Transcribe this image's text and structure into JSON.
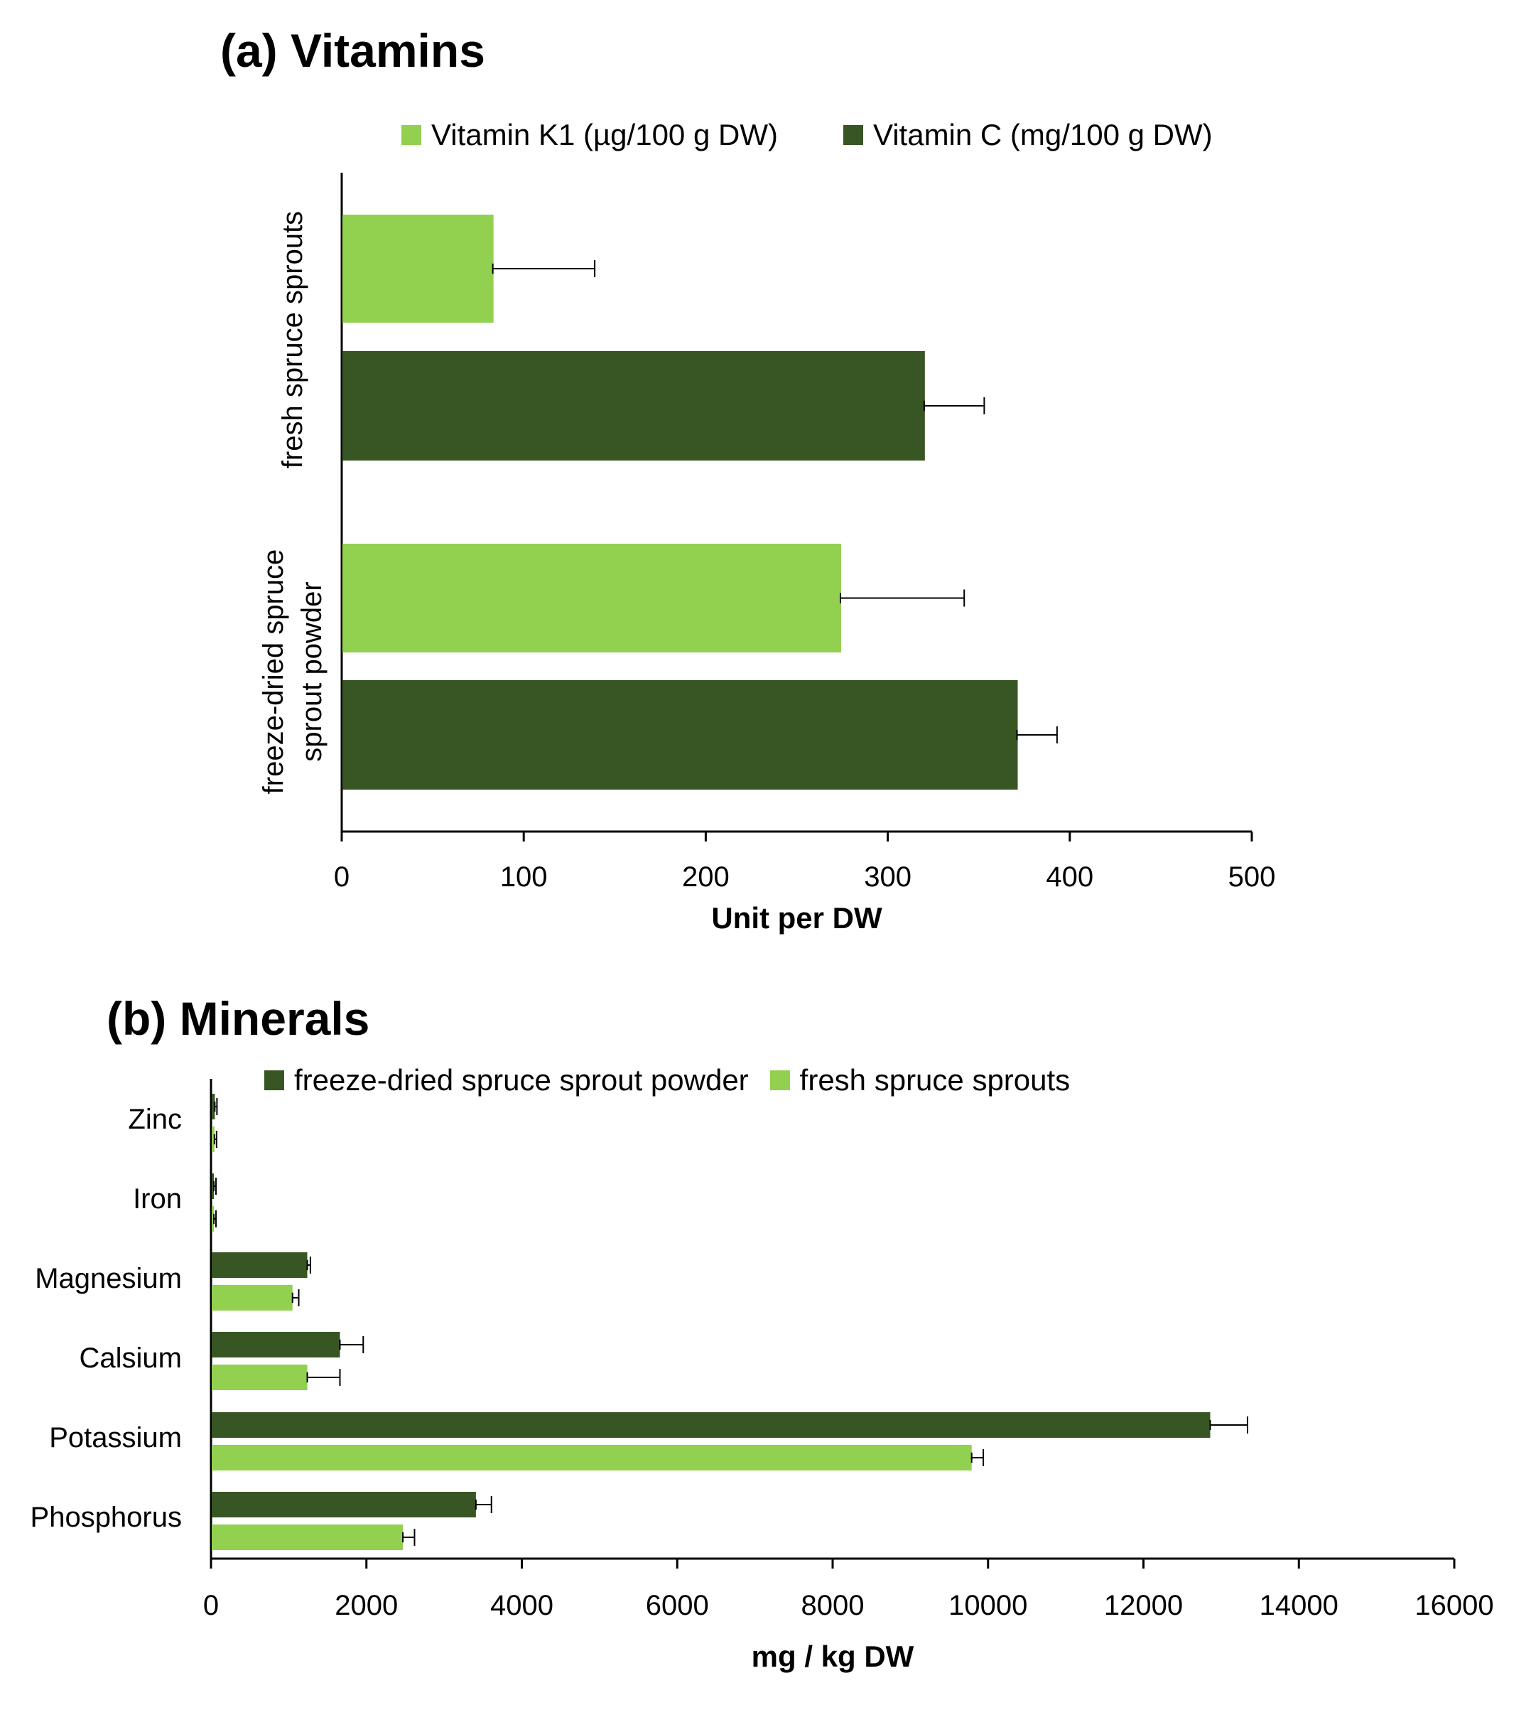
{
  "colors": {
    "light_green": "#92d050",
    "dark_green": "#375623",
    "axis": "#000000"
  },
  "chart_data": [
    {
      "id": "vitamins",
      "type": "bar",
      "orientation": "horizontal",
      "title": "(a) Vitamins",
      "xlabel": "Unit per DW",
      "ylabel": "",
      "xlim": [
        0,
        500
      ],
      "xticks": [
        "0",
        "100",
        "200",
        "300",
        "400",
        "500"
      ],
      "categories": [
        {
          "name": "fresh spruce sprouts",
          "lines": [
            "fresh spruce sprouts"
          ]
        },
        {
          "name": "freeze-dried spruce sprout powder",
          "lines": [
            "freeze-dried spruce",
            "sprout powder"
          ]
        }
      ],
      "legend_position": "top",
      "series": [
        {
          "name": "Vitamin K1 (µg/100 g DW)",
          "color": "#92d050",
          "values": [
            83,
            274
          ],
          "errors": [
            56,
            68
          ]
        },
        {
          "name": "Vitamin C (mg/100 g DW)",
          "color": "#375623",
          "values": [
            320,
            371
          ],
          "errors": [
            33,
            22
          ]
        }
      ]
    },
    {
      "id": "minerals",
      "type": "bar",
      "orientation": "horizontal",
      "title": "(b) Minerals",
      "xlabel": "mg / kg DW",
      "ylabel": "",
      "xlim": [
        0,
        16000
      ],
      "xticks": [
        "0",
        "2000",
        "4000",
        "6000",
        "8000",
        "10000",
        "12000",
        "14000",
        "16000"
      ],
      "categories": [
        "Zinc",
        "Iron",
        "Magnesium",
        "Calsium",
        "Potassium",
        "Phosphorus"
      ],
      "legend_position": "top",
      "series": [
        {
          "name": "freeze-dried spruce sprout powder",
          "color": "#375623",
          "values": [
            40,
            25,
            1230,
            1650,
            12850,
            3400
          ],
          "errors": [
            5,
            3,
            40,
            300,
            480,
            200
          ]
        },
        {
          "name": "fresh spruce sprouts",
          "color": "#92d050",
          "values": [
            35,
            20,
            1040,
            1230,
            9780,
            2460
          ],
          "errors": [
            5,
            3,
            80,
            420,
            150,
            150
          ]
        }
      ]
    }
  ]
}
